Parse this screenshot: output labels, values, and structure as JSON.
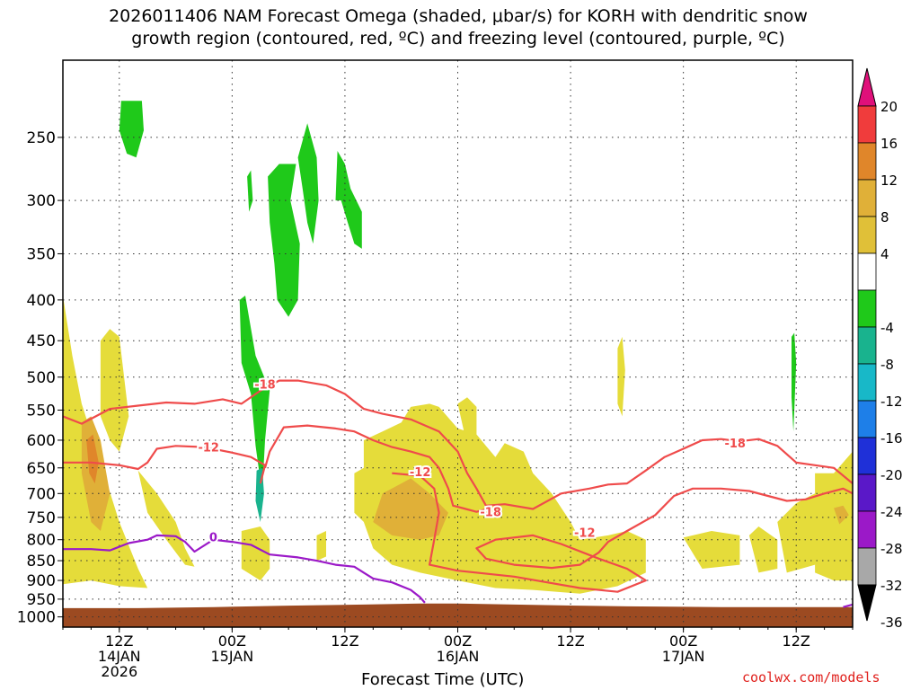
{
  "title_line1": "2026011406 NAM Forecast Omega (shaded, μbar/s) for KORH with dendritic snow",
  "title_line2": "growth region (contoured, red, ºC) and freezing level (contoured, purple, ºC)",
  "xaxis_title": "Forecast Time (UTC)",
  "credit": "coolwx.com/models",
  "colors": {
    "ground": "#9c4a21",
    "omega_up_weak": "#e5dc3a",
    "omega_up_mod": "#e0b038",
    "omega_up_strong": "#e0862a",
    "omega_down": "#1fc91a",
    "omega_down_strong": "#19b38e",
    "dgz_contour": "#ef4b4b",
    "freezing_contour": "#9b19c8"
  },
  "chart_data": {
    "type": "heatmap",
    "title": "2026011406 NAM Forecast Omega (shaded, μbar/s) for KORH with dendritic snow growth region (contoured, red, ºC) and freezing level (contoured, purple, ºC)",
    "xlabel": "Forecast Time (UTC)",
    "ylabel": "",
    "x_ticks": [
      {
        "hour": 6,
        "line1": "12Z",
        "line2": "14JAN",
        "line3": "2026"
      },
      {
        "hour": 18,
        "line1": "00Z",
        "line2": "15JAN",
        "line3": ""
      },
      {
        "hour": 30,
        "line1": "12Z",
        "line2": "",
        "line3": ""
      },
      {
        "hour": 42,
        "line1": "00Z",
        "line2": "16JAN",
        "line3": ""
      },
      {
        "hour": 54,
        "line1": "12Z",
        "line2": "",
        "line3": ""
      },
      {
        "hour": 66,
        "line1": "00Z",
        "line2": "17JAN",
        "line3": ""
      },
      {
        "hour": 78,
        "line1": "12Z",
        "line2": "",
        "line3": ""
      }
    ],
    "xlim_hours": [
      0,
      84
    ],
    "y_ticks": [
      "250",
      "300",
      "350",
      "400",
      "450",
      "500",
      "550",
      "600",
      "650",
      "700",
      "750",
      "800",
      "850",
      "900",
      "950",
      "1000"
    ],
    "y_tick_values": [
      250,
      300,
      350,
      400,
      450,
      500,
      550,
      600,
      650,
      700,
      750,
      800,
      850,
      900,
      950,
      1000
    ],
    "ylim_hpa": [
      200,
      1030
    ],
    "y_scale": "log-pressure (inverted)",
    "grid": true,
    "colorbar": {
      "labels": [
        "20",
        "16",
        "12",
        "8",
        "4",
        "-4",
        "-8",
        "-12",
        "-16",
        "-20",
        "-24",
        "-28",
        "-32",
        "-36"
      ],
      "bins": [
        {
          "range": "16 to 20",
          "color": "#f03c3c"
        },
        {
          "range": "12 to 16",
          "color": "#e0862a"
        },
        {
          "range": "8 to 12",
          "color": "#e0b038"
        },
        {
          "range": "4 to 8",
          "color": "#e0c038"
        },
        {
          "range": "-4 to 4",
          "color": "#ffffff"
        },
        {
          "range": "-8 to -4",
          "color": "#1fc91a"
        },
        {
          "range": "-12 to -8",
          "color": "#19b38e"
        },
        {
          "range": "-16 to -12",
          "color": "#18b8c8"
        },
        {
          "range": "-20 to -16",
          "color": "#1e7fe8"
        },
        {
          "range": "-24 to -20",
          "color": "#1f30d8"
        },
        {
          "range": "-28 to -24",
          "color": "#5a18c8"
        },
        {
          "range": "-32 to -28",
          "color": "#9b19c8"
        },
        {
          "range": "-36 to -32",
          "color": "#a8a8a8"
        }
      ],
      "top_extend_color": "#e0107a",
      "bottom_extend_color": "#000000"
    },
    "contours": [
      {
        "name": "-18",
        "color": "#ef4b4b",
        "label_hours": [
          [
            21.5,
            510
          ],
          [
            71.5,
            605
          ]
        ],
        "points": [
          [
            0,
            560
          ],
          [
            2,
            572
          ],
          [
            5,
            548
          ],
          [
            8,
            543
          ],
          [
            11,
            538
          ],
          [
            14,
            540
          ],
          [
            17,
            533
          ],
          [
            19,
            540
          ],
          [
            21,
            520
          ],
          [
            23,
            505
          ],
          [
            25,
            505
          ],
          [
            28,
            512
          ],
          [
            30,
            525
          ],
          [
            32,
            548
          ],
          [
            34,
            556
          ],
          [
            37,
            565
          ],
          [
            40,
            585
          ],
          [
            42,
            620
          ],
          [
            43,
            660
          ],
          [
            44,
            690
          ],
          [
            45,
            725
          ],
          [
            47,
            722
          ],
          [
            50,
            732
          ],
          [
            53,
            700
          ],
          [
            56,
            690
          ],
          [
            58,
            682
          ],
          [
            60,
            680
          ],
          [
            62,
            655
          ],
          [
            64,
            630
          ],
          [
            66,
            615
          ],
          [
            68,
            600
          ],
          [
            70,
            598
          ],
          [
            72,
            602
          ],
          [
            74,
            598
          ],
          [
            76,
            610
          ],
          [
            78,
            640
          ],
          [
            80,
            645
          ],
          [
            82,
            650
          ],
          [
            84,
            680
          ]
        ]
      },
      {
        "name": "-18",
        "color": "#ef4b4b",
        "label_hours": [
          [
            45.5,
            738
          ]
        ],
        "points": [
          [
            21.5,
            650
          ],
          [
            22,
            620
          ],
          [
            23.5,
            578
          ],
          [
            26,
            575
          ],
          [
            29,
            580
          ],
          [
            31,
            585
          ],
          [
            33,
            600
          ],
          [
            35,
            612
          ],
          [
            37,
            620
          ],
          [
            39,
            630
          ],
          [
            40,
            650
          ],
          [
            41,
            690
          ],
          [
            41.5,
            725
          ],
          [
            42.5,
            730
          ],
          [
            44,
            738
          ],
          [
            45.5,
            730
          ]
        ]
      },
      {
        "name": "-12",
        "color": "#ef4b4b",
        "label_hours": [
          [
            15.5,
            612
          ]
        ],
        "points": [
          [
            0,
            640
          ],
          [
            3,
            640
          ],
          [
            6,
            645
          ],
          [
            8,
            652
          ],
          [
            9,
            640
          ],
          [
            10,
            615
          ],
          [
            12,
            610
          ],
          [
            15,
            612
          ],
          [
            18,
            622
          ],
          [
            20,
            630
          ],
          [
            21.5,
            645
          ],
          [
            21,
            680
          ]
        ]
      },
      {
        "name": "-12",
        "color": "#ef4b4b",
        "label_hours": [
          [
            38,
            657
          ],
          [
            55.5,
            783
          ]
        ],
        "points": [
          [
            35,
            660
          ],
          [
            38,
            665
          ],
          [
            39.5,
            690
          ],
          [
            40,
            740
          ],
          [
            39.5,
            800
          ],
          [
            39,
            860
          ],
          [
            42,
            875
          ],
          [
            48,
            890
          ],
          [
            55,
            920
          ],
          [
            59,
            930
          ],
          [
            62,
            900
          ],
          [
            60,
            870
          ],
          [
            57,
            845
          ],
          [
            53,
            810
          ],
          [
            50,
            790
          ],
          [
            46,
            800
          ],
          [
            44,
            820
          ],
          [
            45,
            845
          ],
          [
            48,
            860
          ],
          [
            52,
            868
          ],
          [
            55,
            860
          ],
          [
            57,
            830
          ],
          [
            58,
            805
          ],
          [
            60,
            780
          ],
          [
            63,
            745
          ],
          [
            65,
            705
          ],
          [
            67,
            690
          ],
          [
            70,
            690
          ],
          [
            73,
            695
          ],
          [
            75,
            705
          ],
          [
            77,
            715
          ],
          [
            79,
            712
          ],
          [
            81,
            700
          ],
          [
            83,
            690
          ],
          [
            84,
            700
          ]
        ]
      }
    ],
    "freezing_level": {
      "name": "0",
      "label_hour": 16,
      "label_hpa": 793,
      "points": [
        [
          0,
          822
        ],
        [
          3,
          822
        ],
        [
          5,
          825
        ],
        [
          7,
          808
        ],
        [
          9,
          800
        ],
        [
          10,
          790
        ],
        [
          12,
          792
        ],
        [
          13,
          805
        ],
        [
          14,
          828
        ],
        [
          16,
          800
        ],
        [
          18,
          805
        ],
        [
          20,
          812
        ],
        [
          22,
          835
        ],
        [
          25,
          842
        ],
        [
          27,
          850
        ],
        [
          29,
          860
        ],
        [
          31,
          865
        ],
        [
          32,
          880
        ],
        [
          33,
          895
        ],
        [
          35,
          905
        ],
        [
          37,
          925
        ],
        [
          38,
          945
        ],
        [
          38.5,
          960
        ]
      ]
    }
  }
}
